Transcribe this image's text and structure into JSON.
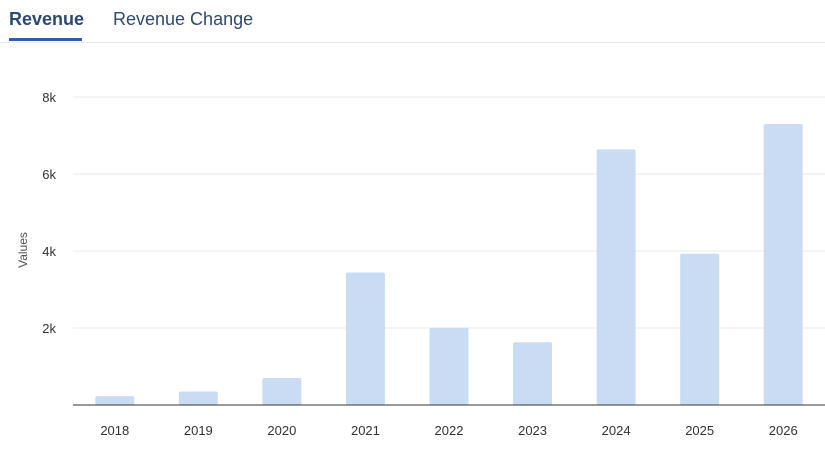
{
  "tabs": [
    {
      "label": "Revenue",
      "active": true
    },
    {
      "label": "Revenue Change",
      "active": false
    }
  ],
  "colors": {
    "bar": "#c9dcf4",
    "gridline": "#e6e8ec",
    "axis": "#333333",
    "tab_accent": "#2d5fa3"
  },
  "chart_data": {
    "type": "bar",
    "categories": [
      "2018",
      "2019",
      "2020",
      "2021",
      "2022",
      "2023",
      "2024",
      "2025",
      "2026"
    ],
    "values": [
      230,
      350,
      700,
      3440,
      2010,
      1630,
      6640,
      3930,
      7300
    ],
    "ylabel": "Values",
    "ylim": [
      0,
      8000
    ],
    "yticks": [
      2000,
      4000,
      6000,
      8000
    ],
    "ytick_labels": [
      "2k",
      "4k",
      "6k",
      "8k"
    ],
    "grid": true,
    "legend": "none"
  }
}
